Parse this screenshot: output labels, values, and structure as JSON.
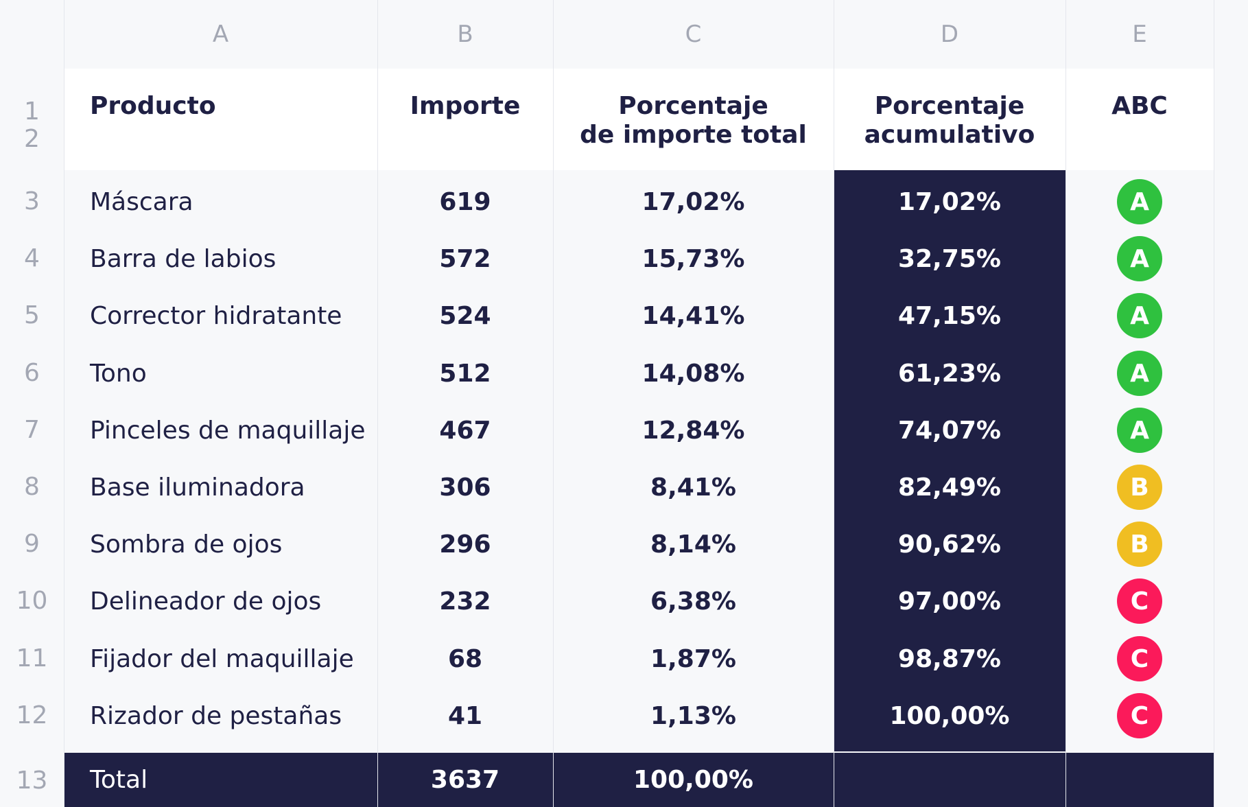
{
  "columns": [
    "A",
    "B",
    "C",
    "D",
    "E"
  ],
  "header_rows": [
    "1",
    "2"
  ],
  "headers": {
    "product": "Producto",
    "amount": "Importe",
    "pct_line1": "Porcentaje",
    "pct_line2": "de importe total",
    "cum_line1": "Porcentaje",
    "cum_line2": "acumulativo",
    "abc": "ABC"
  },
  "rows": [
    {
      "n": "3",
      "product": "Máscara",
      "amount": "619",
      "pct": "17,02%",
      "cum": "17,02%",
      "abc": "A"
    },
    {
      "n": "4",
      "product": "Barra de labios",
      "amount": "572",
      "pct": "15,73%",
      "cum": "32,75%",
      "abc": "A"
    },
    {
      "n": "5",
      "product": "Corrector hidratante",
      "amount": "524",
      "pct": "14,41%",
      "cum": "47,15%",
      "abc": "A"
    },
    {
      "n": "6",
      "product": "Tono",
      "amount": "512",
      "pct": "14,08%",
      "cum": "61,23%",
      "abc": "A"
    },
    {
      "n": "7",
      "product": "Pinceles de maquillaje",
      "amount": "467",
      "pct": "12,84%",
      "cum": "74,07%",
      "abc": "A"
    },
    {
      "n": "8",
      "product": "Base iluminadora",
      "amount": "306",
      "pct": "8,41%",
      "cum": "82,49%",
      "abc": "B"
    },
    {
      "n": "9",
      "product": "Sombra de ojos",
      "amount": "296",
      "pct": "8,14%",
      "cum": "90,62%",
      "abc": "B"
    },
    {
      "n": "10",
      "product": "Delineador de ojos",
      "amount": "232",
      "pct": "6,38%",
      "cum": "97,00%",
      "abc": "C"
    },
    {
      "n": "11",
      "product": "Fijador del maquillaje",
      "amount": "68",
      "pct": "1,87%",
      "cum": "98,87%",
      "abc": "C"
    },
    {
      "n": "12",
      "product": "Rizador de pestañas",
      "amount": "41",
      "pct": "1,13%",
      "cum": "100,00%",
      "abc": "C"
    }
  ],
  "total": {
    "n": "13",
    "label": "Total",
    "amount": "3637",
    "pct": "100,00%"
  },
  "abc_colors": {
    "A": "#2fc13f",
    "B": "#f0be22",
    "C": "#fb1a5a"
  },
  "colors": {
    "navy": "#1f2044",
    "gridline": "#e4e6ec",
    "muted": "#a3a7b3"
  }
}
